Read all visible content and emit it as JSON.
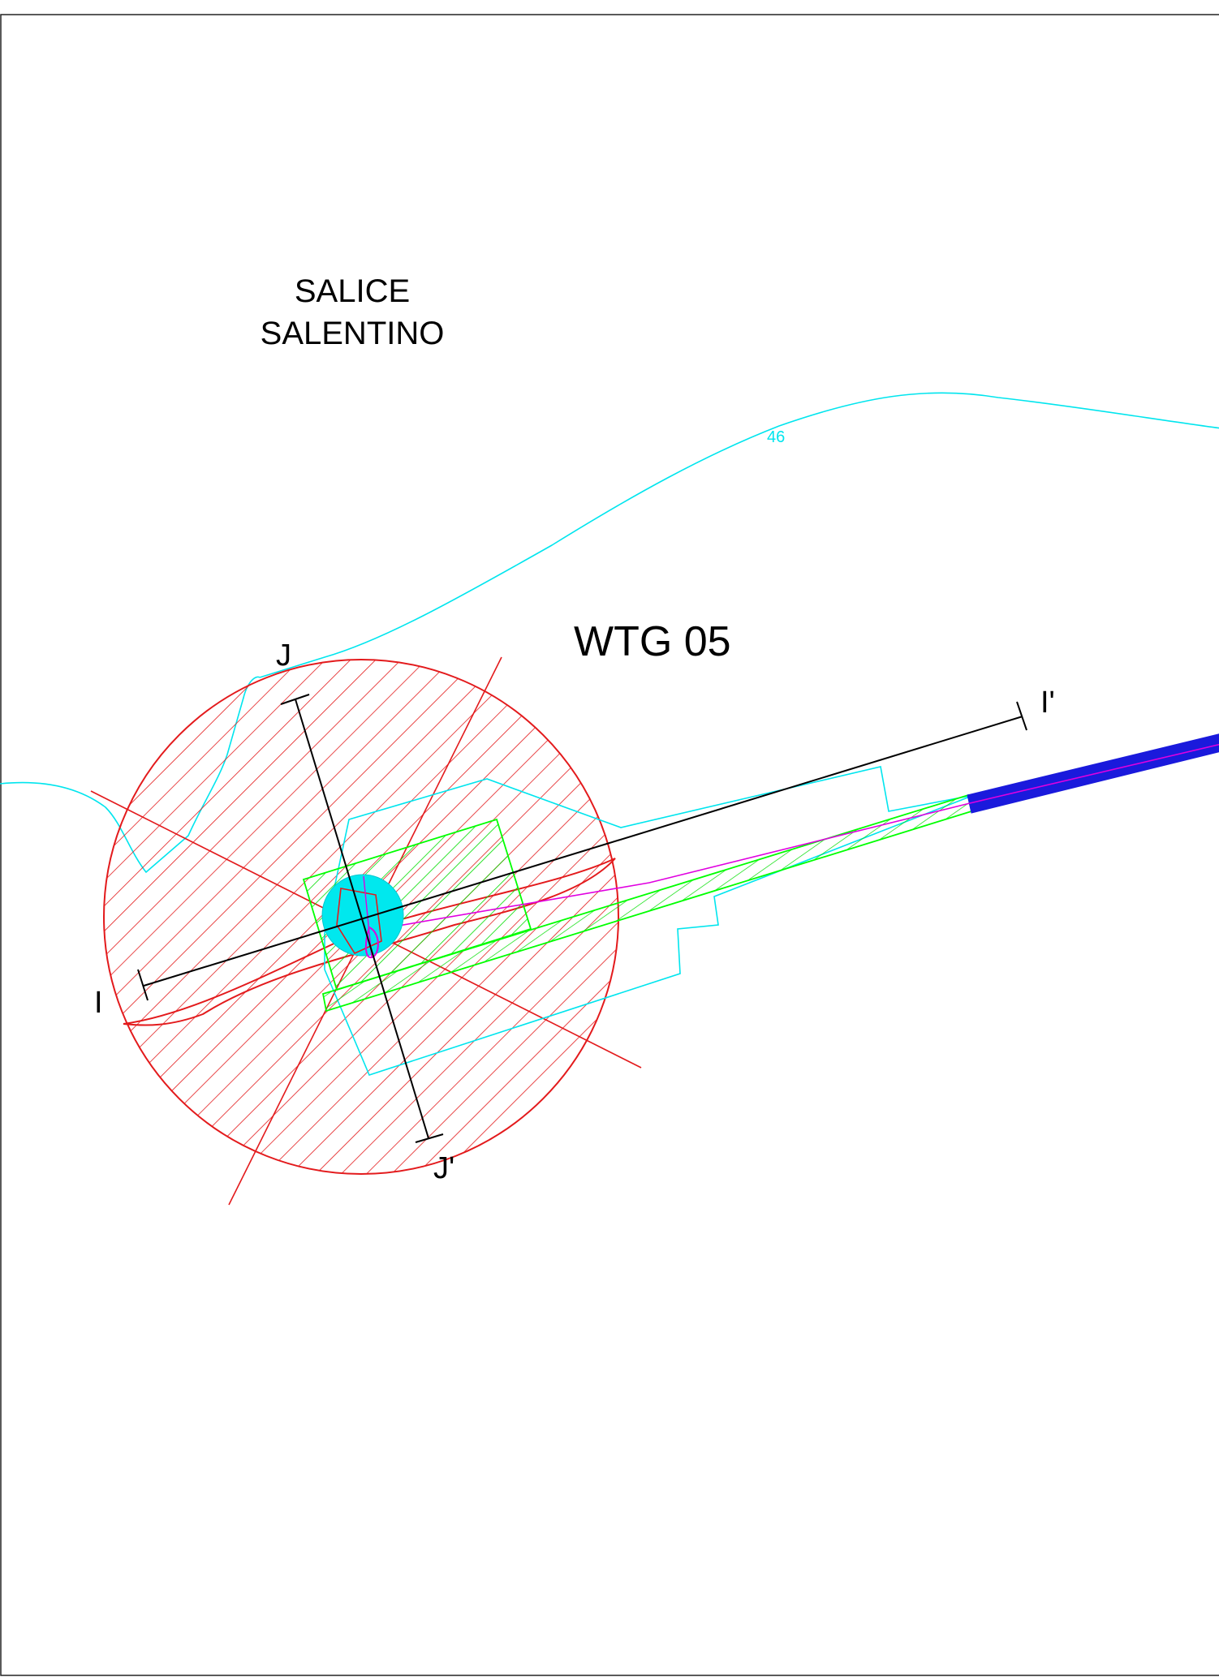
{
  "labels": {
    "town_line1": "SALICE",
    "town_line2": "SALENTINO",
    "turbine": "WTG 05",
    "section_i_start": "I",
    "section_i_end": "I'",
    "section_j_start": "J",
    "section_j_end": "J'",
    "contour_elevation": "46"
  },
  "colors": {
    "buffer_circle": "#e31a1c",
    "contour": "#00e5ee",
    "platform": "#00ff00",
    "road": "#1a1adc",
    "cable": "#e000e0",
    "turbine_foundation": "#00e8ee",
    "section_line": "#000000",
    "frame": "#222222"
  }
}
